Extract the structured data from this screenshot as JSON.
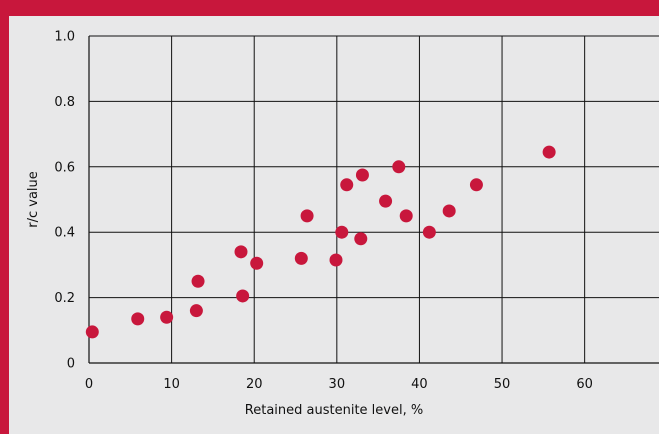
{
  "chart_data": {
    "type": "scatter",
    "xlabel": "Retained austenite level, %",
    "ylabel": "r/c value",
    "xlim": [
      0,
      69
    ],
    "ylim": [
      0,
      1.0
    ],
    "x_ticks": [
      0,
      10,
      20,
      30,
      40,
      50,
      60
    ],
    "x_tick_labels": [
      "0",
      "10",
      "20",
      "30",
      "40",
      "50",
      "60"
    ],
    "y_ticks": [
      0,
      0.2,
      0.4,
      0.6,
      0.8,
      1.0
    ],
    "y_tick_labels": [
      "0",
      "0.2",
      "0.4",
      "0.6",
      "0.8",
      "1.0"
    ],
    "grid": true,
    "colors": {
      "point": "#c8173c",
      "frame": "#c8173c",
      "panel_background": "#e8e8e9",
      "grid": "#111111"
    },
    "points": [
      {
        "x": 0.4,
        "y": 0.095
      },
      {
        "x": 5.9,
        "y": 0.135
      },
      {
        "x": 9.4,
        "y": 0.14
      },
      {
        "x": 13.0,
        "y": 0.16
      },
      {
        "x": 13.2,
        "y": 0.25
      },
      {
        "x": 18.4,
        "y": 0.34
      },
      {
        "x": 18.6,
        "y": 0.205
      },
      {
        "x": 20.3,
        "y": 0.305
      },
      {
        "x": 25.7,
        "y": 0.32
      },
      {
        "x": 26.4,
        "y": 0.45
      },
      {
        "x": 29.9,
        "y": 0.315
      },
      {
        "x": 30.6,
        "y": 0.4
      },
      {
        "x": 31.2,
        "y": 0.545
      },
      {
        "x": 32.9,
        "y": 0.38
      },
      {
        "x": 33.1,
        "y": 0.575
      },
      {
        "x": 35.9,
        "y": 0.495
      },
      {
        "x": 37.5,
        "y": 0.6
      },
      {
        "x": 38.4,
        "y": 0.45
      },
      {
        "x": 41.2,
        "y": 0.4
      },
      {
        "x": 43.6,
        "y": 0.465
      },
      {
        "x": 46.9,
        "y": 0.545
      },
      {
        "x": 55.7,
        "y": 0.645
      }
    ]
  }
}
